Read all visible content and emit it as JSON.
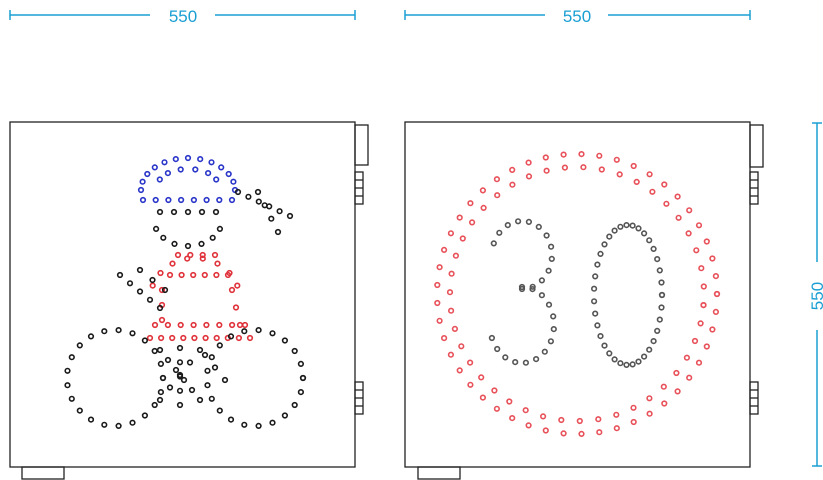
{
  "dimensions": {
    "left_width": "550",
    "right_width": "550",
    "right_height": "550"
  },
  "colors": {
    "dimension": "#1a9fd3",
    "outline": "#222222",
    "led_black": "#1a1a1a",
    "led_red": "#e0323a",
    "led_blue": "#2a35c9",
    "led_ring_red": "#e8515a",
    "led_digit": "#555555"
  },
  "left_panel": {
    "symbol": "child-on-bicycle",
    "led_colors": [
      "black",
      "red",
      "blue"
    ]
  },
  "right_panel": {
    "symbol": "speed-limit",
    "speed_value": "30"
  }
}
